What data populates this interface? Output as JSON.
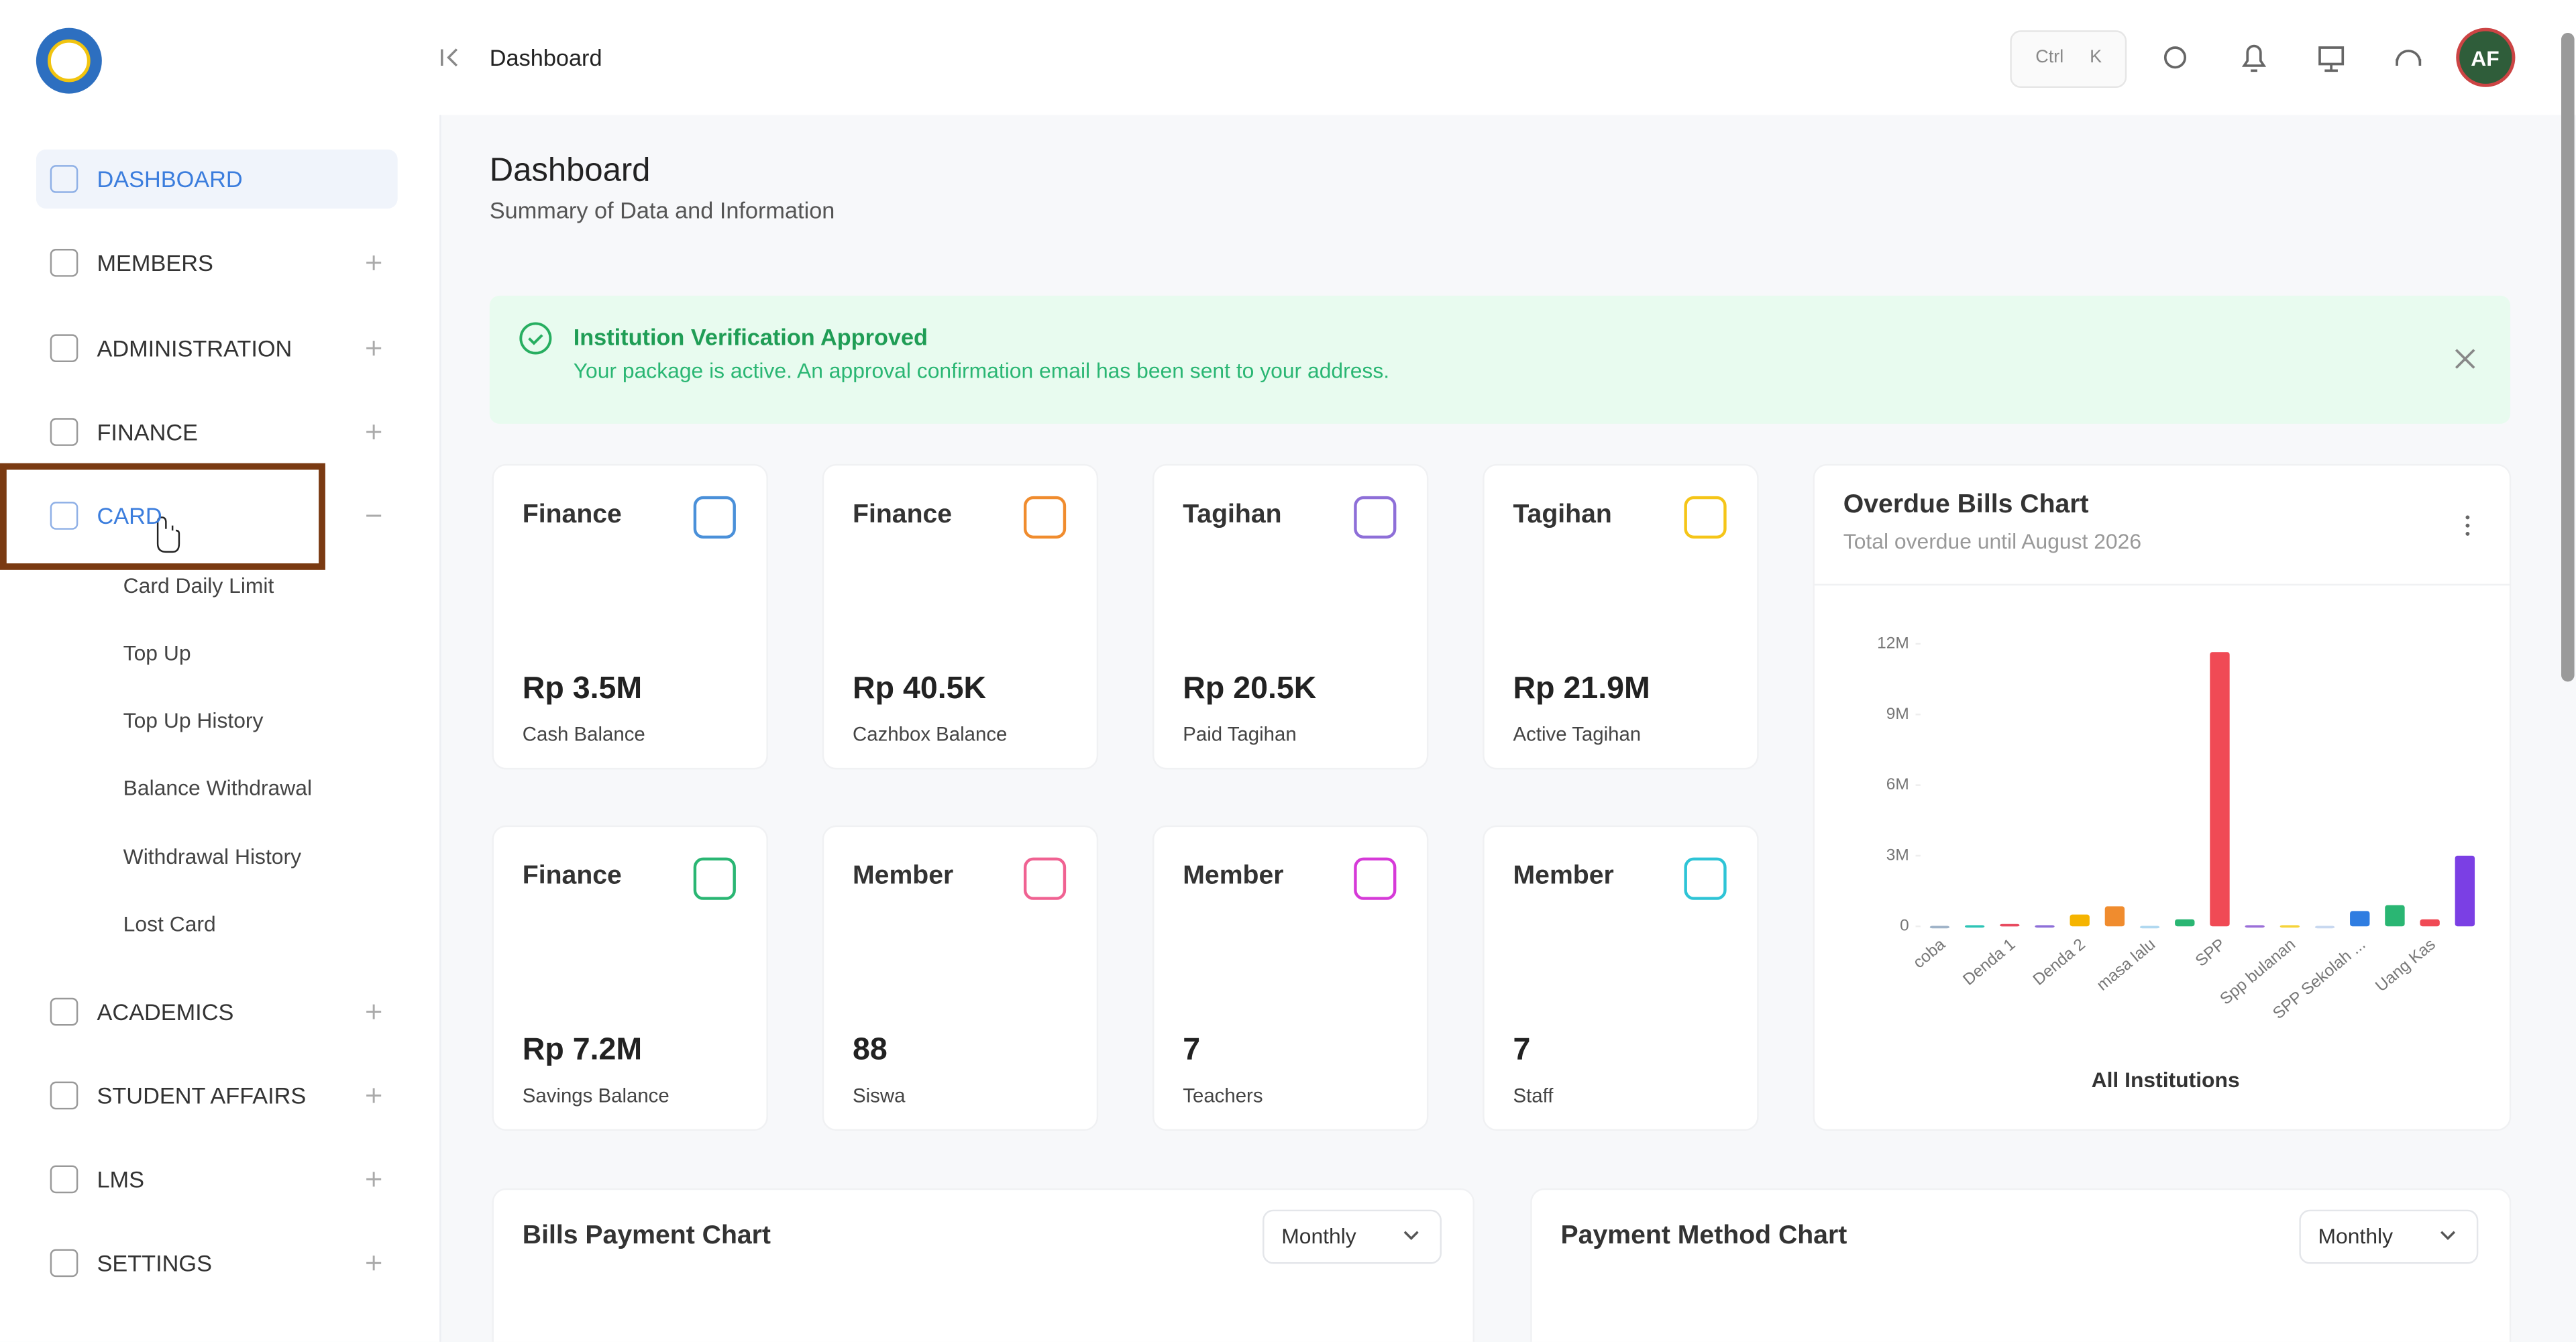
{
  "topbar": {
    "breadcrumb": "Dashboard",
    "shortcut": [
      "Ctrl",
      "K"
    ],
    "avatar": "AF"
  },
  "sidebar": {
    "menu": [
      "DASHBOARD",
      "MEMBERS",
      "ADMINISTRATION",
      "FINANCE",
      "CARD",
      "ACADEMICS",
      "STUDENT AFFAIRS",
      "LMS",
      "SETTINGS"
    ],
    "card_submenu": [
      "Card Daily Limit",
      "Top Up",
      "Top Up History",
      "Balance Withdrawal",
      "Withdrawal History",
      "Lost Card"
    ]
  },
  "page": {
    "title": "Dashboard",
    "subtitle": "Summary of Data and Information"
  },
  "alert": {
    "title": "Institution Verification Approved",
    "message": "Your package is active. An approval confirmation email has been sent to your address."
  },
  "stats": [
    {
      "category": "Finance",
      "value": "Rp 3.5M",
      "label": "Cash Balance"
    },
    {
      "category": "Finance",
      "value": "Rp 40.5K",
      "label": "Cazhbox Balance"
    },
    {
      "category": "Tagihan",
      "value": "Rp 20.5K",
      "label": "Paid Tagihan"
    },
    {
      "category": "Tagihan",
      "value": "Rp 21.9M",
      "label": "Active Tagihan"
    },
    {
      "category": "Finance",
      "value": "Rp 7.2M",
      "label": "Savings Balance"
    },
    {
      "category": "Member",
      "value": "88",
      "label": "Siswa"
    },
    {
      "category": "Member",
      "value": "7",
      "label": "Teachers"
    },
    {
      "category": "Member",
      "value": "7",
      "label": "Staff"
    }
  ],
  "chart_data": {
    "type": "bar",
    "title": "Overdue Bills Chart",
    "subtitle": "Total overdue until August 2026",
    "x_label": "All Institutions",
    "categories": [
      "coba",
      null,
      "Denda 1",
      null,
      "Denda 2",
      null,
      "masa lalu",
      null,
      "SPP",
      null,
      "Spp bulanan",
      null,
      "SPP Sekolah ...",
      null,
      "Uang Kas",
      null
    ],
    "values": [
      20000,
      50000,
      100000,
      50000,
      500000,
      850000,
      20000,
      300000,
      11650000,
      50000,
      50000,
      20000,
      650000,
      900000,
      300000,
      3000000
    ],
    "colors": [
      "#9fb3c8",
      "#2ec4b6",
      "#e84a5f",
      "#8e6fd8",
      "#f5b400",
      "#f08c2e",
      "#b0d8f0",
      "#2ab673",
      "#f04a55",
      "#9b6fd8",
      "#f5d33a",
      "#c8d8f0",
      "#2f7de1",
      "#2ab673",
      "#f04a55",
      "#7b3fe4"
    ],
    "ylim": [
      0,
      12000000
    ],
    "yticks": [
      0,
      {
        "value": 3000000,
        "label": "3M"
      },
      {
        "value": 6000000,
        "label": "6M"
      },
      {
        "value": 9000000,
        "label": "9M"
      },
      {
        "value": 12000000,
        "label": "12M"
      }
    ]
  },
  "bottom_charts": [
    {
      "title": "Bills Payment Chart",
      "period": "Monthly"
    },
    {
      "title": "Payment Method Chart",
      "period": "Monthly"
    }
  ]
}
